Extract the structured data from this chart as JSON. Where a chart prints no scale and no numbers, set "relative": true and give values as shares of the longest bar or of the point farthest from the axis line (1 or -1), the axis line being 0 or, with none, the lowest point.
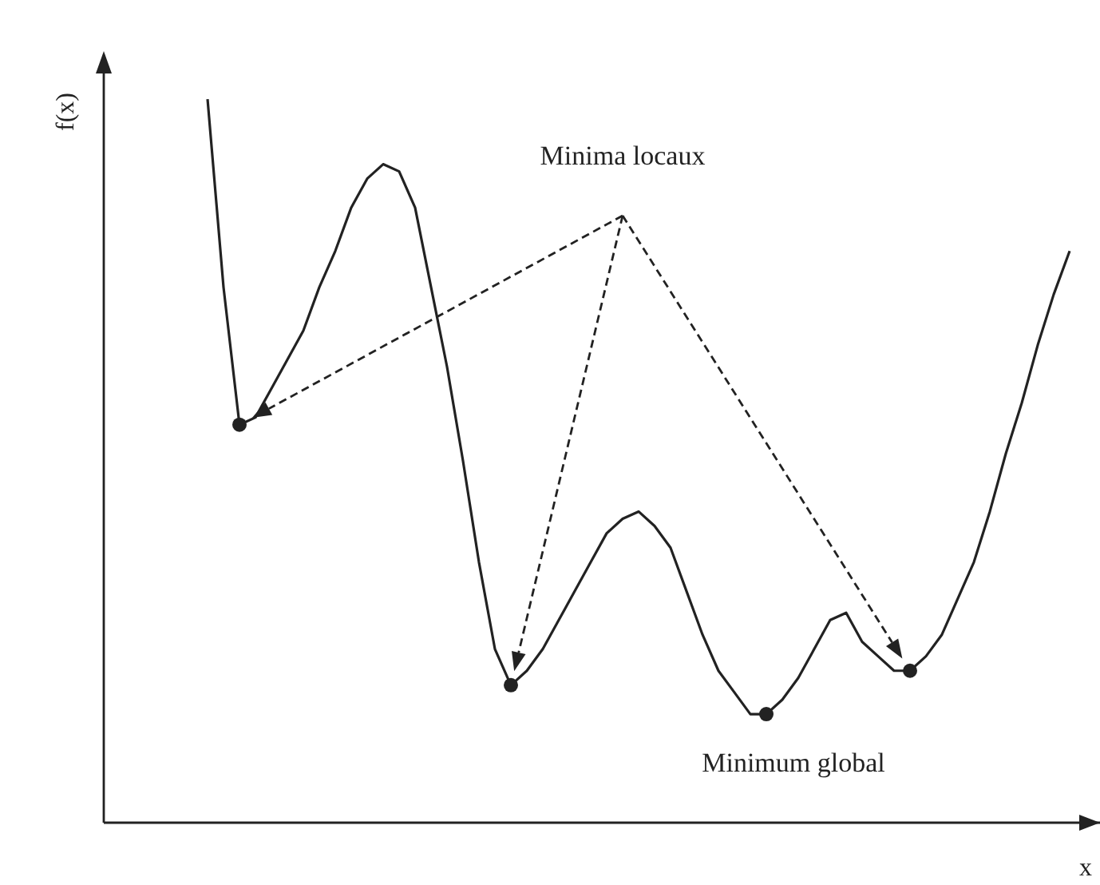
{
  "chart_data": {
    "type": "line",
    "relative": true,
    "xlabel": "x",
    "ylabel": "f(x)",
    "legend": false,
    "grid": false,
    "categories": [
      null,
      null,
      null,
      null,
      null,
      null,
      null,
      null,
      null,
      null,
      null,
      null,
      null,
      null,
      null,
      null,
      null,
      null,
      null,
      null,
      null,
      null,
      null,
      null,
      null,
      null,
      null,
      null,
      null,
      null,
      null,
      null,
      null,
      null,
      null,
      null,
      null,
      null,
      null,
      null,
      null,
      null,
      null,
      null,
      null,
      null,
      null,
      null,
      null,
      null,
      null,
      null,
      null,
      null,
      null
    ],
    "series": [
      {
        "color": "#222222",
        "marker": "none",
        "values": [
          1.0,
          0.74,
          0.55,
          0.56,
          0.6,
          0.64,
          0.68,
          0.74,
          0.79,
          0.85,
          0.89,
          0.91,
          0.9,
          0.85,
          0.74,
          0.63,
          0.5,
          0.36,
          0.24,
          0.19,
          0.21,
          0.24,
          0.28,
          0.32,
          0.36,
          0.4,
          0.42,
          0.43,
          0.41,
          0.38,
          0.32,
          0.26,
          0.21,
          0.18,
          0.15,
          0.15,
          0.17,
          0.2,
          0.24,
          0.28,
          0.29,
          0.25,
          0.23,
          0.21,
          0.21,
          0.23,
          0.26,
          0.31,
          0.36,
          0.43,
          0.51,
          0.58,
          0.66,
          0.73,
          0.79
        ]
      }
    ],
    "annotations": [
      "Minima locaux",
      "Minimum global"
    ]
  }
}
